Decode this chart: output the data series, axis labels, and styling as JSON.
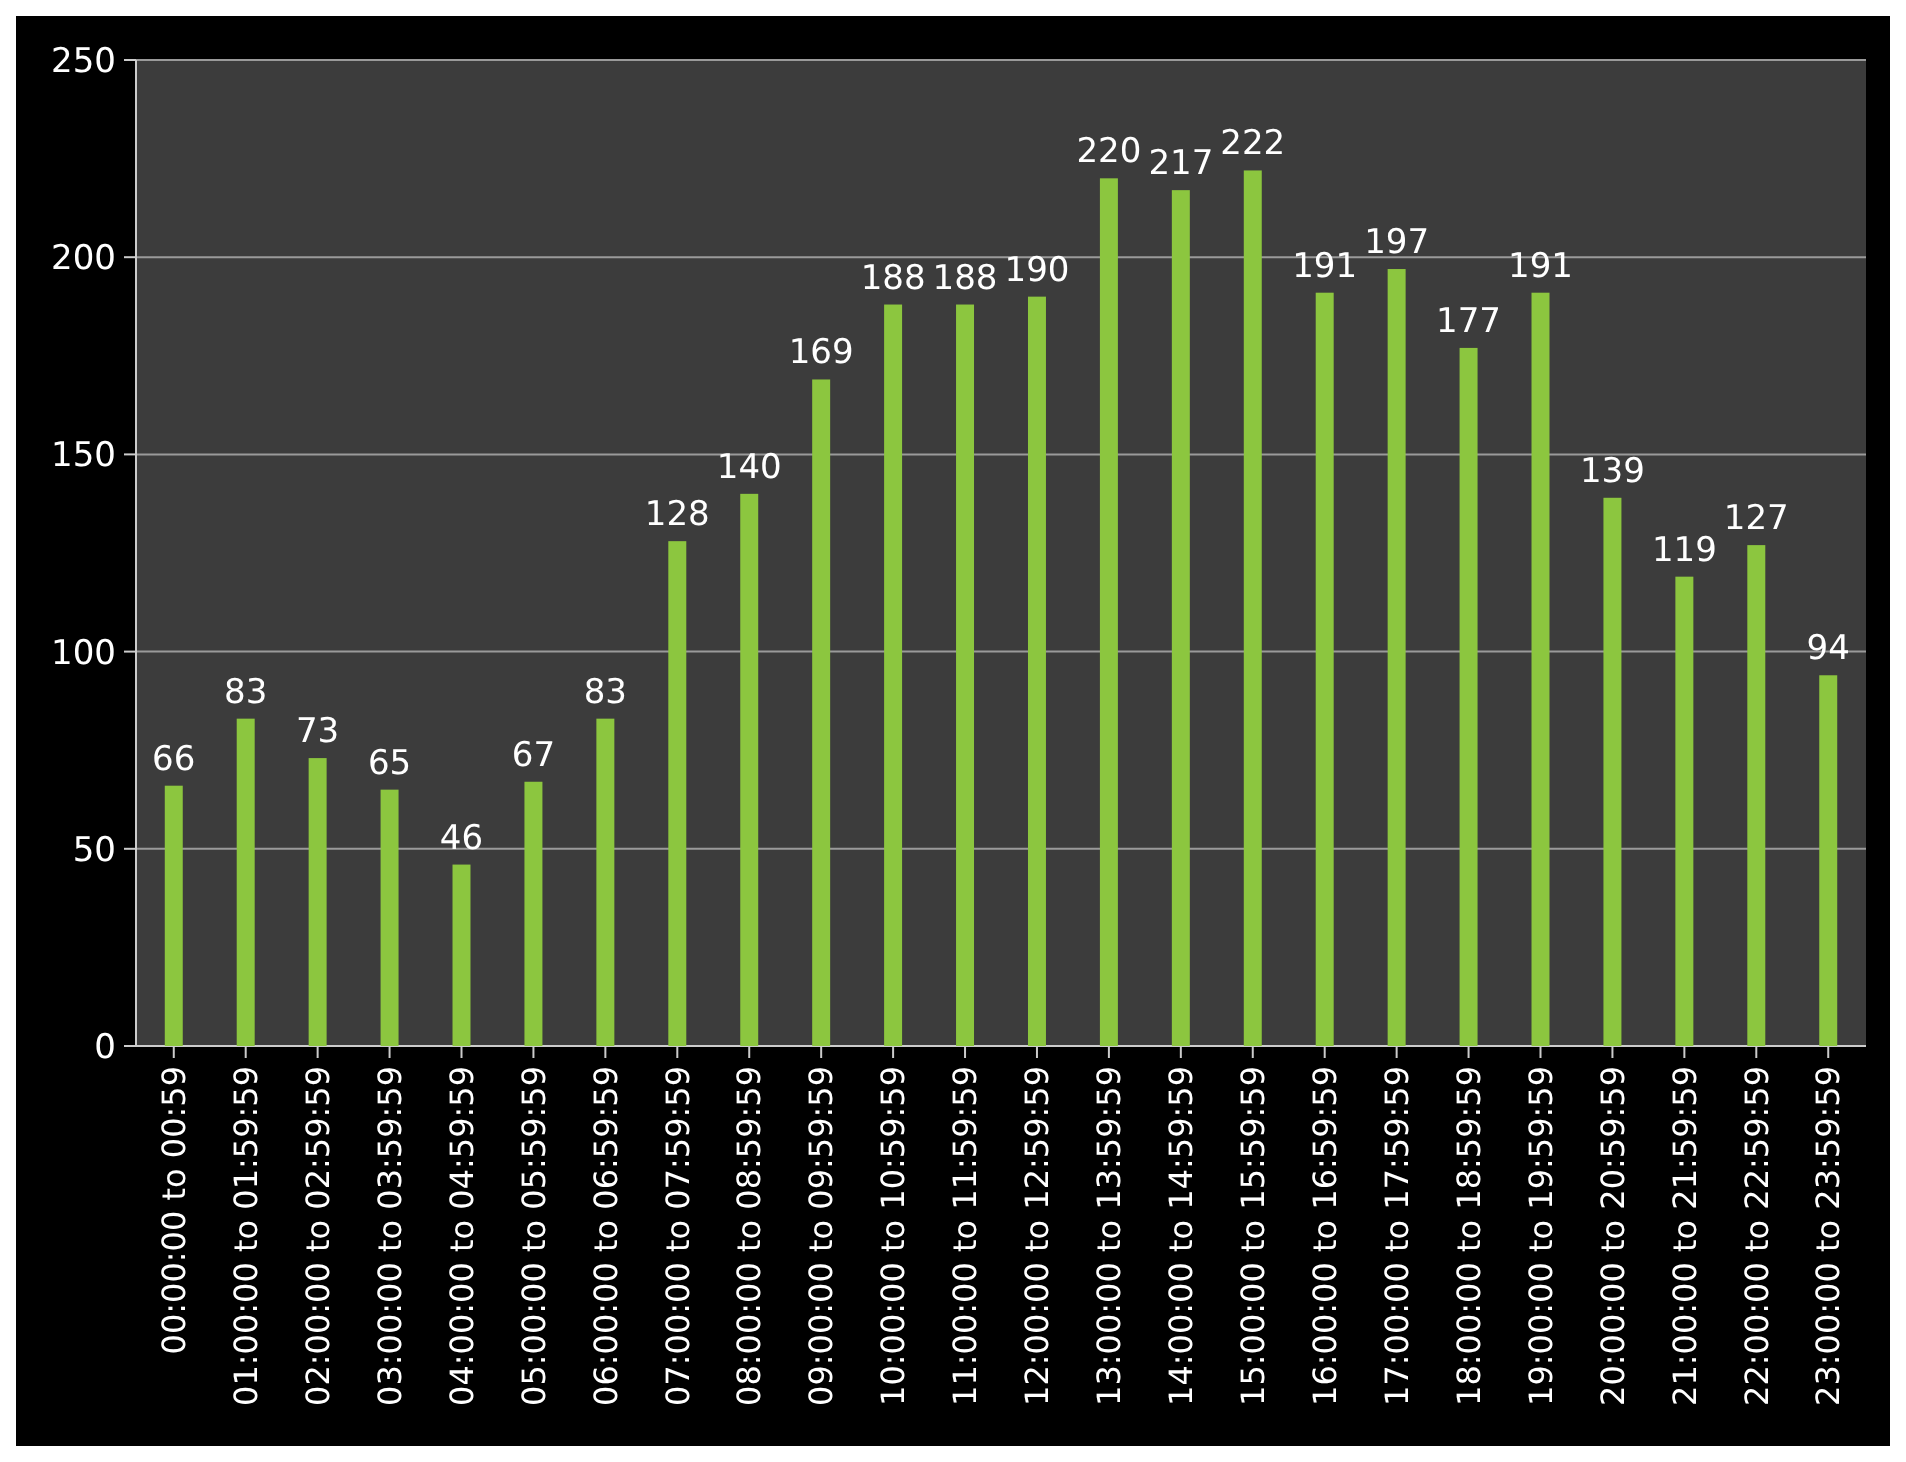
{
  "chart_data": {
    "type": "bar",
    "categories": [
      "00:00:00 to 00:59",
      "01:00:00 to 01:59:59",
      "02:00:00 to 02:59:59",
      "03:00:00 to 03:59:59",
      "04:00:00 to 04:59:59",
      "05:00:00 to 05:59:59",
      "06:00:00 to 06:59:59",
      "07:00:00 to 07:59:59",
      "08:00:00 to 08:59:59",
      "09:00:00 to 09:59:59",
      "10:00:00 to 10:59:59",
      "11:00:00 to 11:59:59",
      "12:00:00 to 12:59:59",
      "13:00:00 to 13:59:59",
      "14:00:00 to 14:59:59",
      "15:00:00 to 15:59:59",
      "16:00:00 to 16:59:59",
      "17:00:00 to 17:59:59",
      "18:00:00 to 18:59:59",
      "19:00:00 to 19:59:59",
      "20:00:00 to 20:59:59",
      "21:00:00 to 21:59:59",
      "22:00:00 to 22:59:59",
      "23:00:00 to 23:59:59"
    ],
    "values": [
      66,
      83,
      73,
      65,
      46,
      67,
      83,
      128,
      140,
      169,
      188,
      188,
      190,
      220,
      217,
      222,
      191,
      197,
      177,
      191,
      139,
      119,
      127,
      94
    ],
    "color": "#8cc63f",
    "ylim": [
      0,
      250
    ],
    "yticks": [
      0,
      50,
      100,
      150,
      200,
      250
    ],
    "grid": "y",
    "data_labels": true
  }
}
